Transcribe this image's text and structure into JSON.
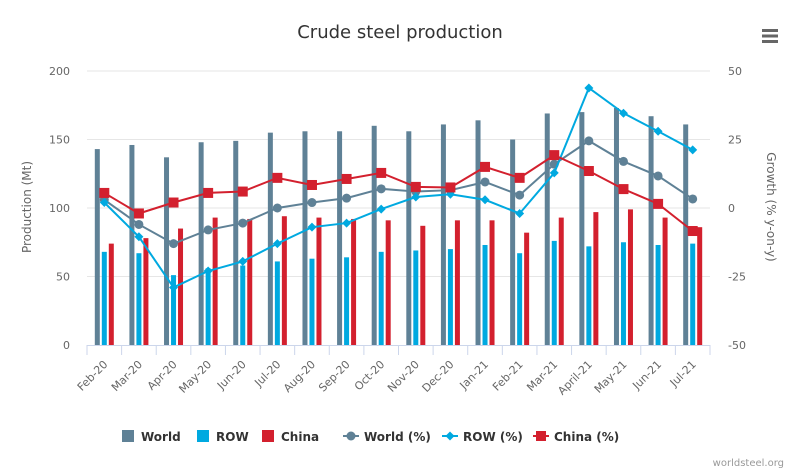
{
  "chart_data": {
    "type": "bar",
    "title": "Crude steel production",
    "xlabel": "",
    "ylabel": "Production (Mt)",
    "y2label": "Growth (% y-on-y)",
    "ylim": [
      0,
      200
    ],
    "y2lim": [
      -50,
      50
    ],
    "yticks": [
      "0",
      "50",
      "100",
      "150",
      "200"
    ],
    "y2ticks": [
      "-50",
      "-25",
      "0",
      "25",
      "50"
    ],
    "ytick_values": [
      0,
      50,
      100,
      150,
      200
    ],
    "y2tick_values": [
      -50,
      -25,
      0,
      25,
      50
    ],
    "grid": true,
    "legend_position": "bottom",
    "categories": [
      "Feb-20",
      "Mar-20",
      "Apr-20",
      "May-20",
      "Jun-20",
      "Jul-20",
      "Aug-20",
      "Sep-20",
      "Oct-20",
      "Nov-20",
      "Dec-20",
      "Jan-21",
      "Feb-21",
      "Mar-21",
      "April-21",
      "May-21",
      "Jun-21",
      "Jul-21"
    ],
    "bar_series": [
      {
        "name": "World",
        "color": "#5f8196",
        "values": [
          143,
          146,
          137,
          148,
          149,
          155,
          156,
          156,
          160,
          156,
          161,
          164,
          150,
          169,
          170,
          173,
          167,
          161
        ]
      },
      {
        "name": "ROW",
        "color": "#00a9e0",
        "values": [
          68,
          67,
          51,
          56,
          58,
          61,
          63,
          64,
          68,
          69,
          70,
          73,
          67,
          76,
          72,
          75,
          73,
          74
        ]
      },
      {
        "name": "China",
        "color": "#d3202e",
        "values": [
          74,
          78,
          85,
          93,
          92,
          94,
          93,
          92,
          91,
          87,
          91,
          91,
          82,
          93,
          97,
          99,
          93,
          86
        ]
      }
    ],
    "line_series": [
      {
        "name": "World (%)",
        "color": "#5f8196",
        "marker": "circle",
        "values": [
          3,
          -6,
          -13,
          -8,
          -5.5,
          0,
          2,
          3.6,
          7,
          6,
          6.5,
          9.5,
          4.7,
          16,
          24.5,
          17,
          11.7,
          3.3
        ]
      },
      {
        "name": "ROW (%)",
        "color": "#00a9e0",
        "marker": "diamond",
        "values": [
          2,
          -10.5,
          -29,
          -23,
          -19.5,
          -13,
          -7,
          -5.5,
          -0.4,
          4,
          5,
          3,
          -2,
          12.8,
          43.8,
          34.6,
          28,
          21.2
        ]
      },
      {
        "name": "China (%)",
        "color": "#d3202e",
        "marker": "square",
        "values": [
          5.5,
          -2,
          2,
          5.5,
          6,
          11,
          8.4,
          10.6,
          12.8,
          7.7,
          7.5,
          15,
          11,
          19.3,
          13.5,
          6.9,
          1.5,
          -8.4
        ]
      }
    ],
    "legend": [
      "World",
      "ROW",
      "China",
      "World (%)",
      "ROW (%)",
      "China (%)"
    ]
  },
  "credit": "worldsteel.org",
  "menu": {
    "icon": "hamburger-menu-icon"
  }
}
